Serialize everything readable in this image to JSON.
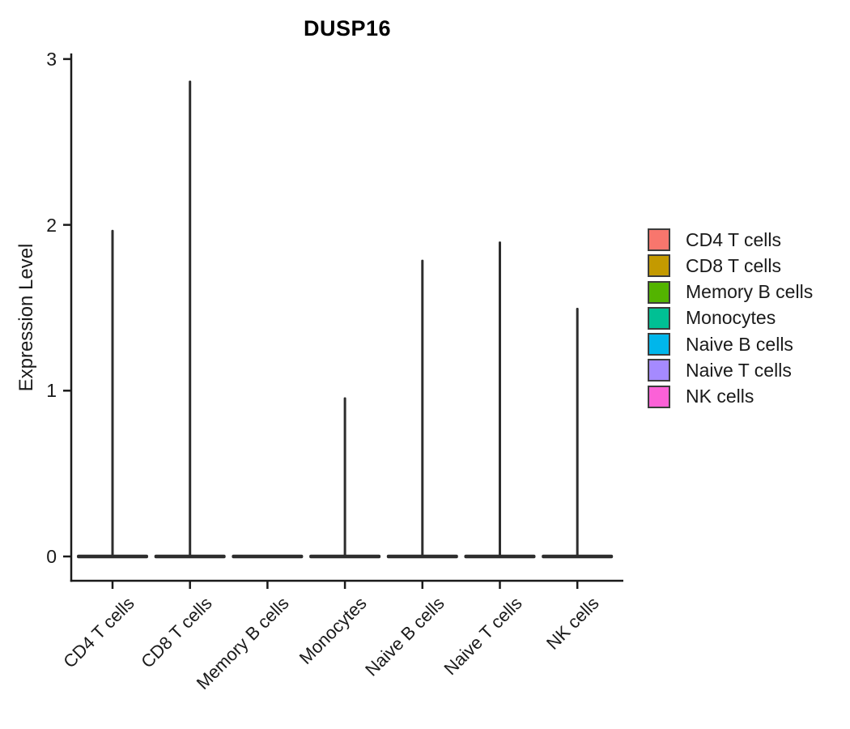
{
  "title": "DUSP16",
  "chart_data": {
    "type": "violin",
    "title": "DUSP16",
    "ylabel": "Expression Level",
    "ylim": [
      0,
      3
    ],
    "yticks": [
      0,
      1,
      2,
      3
    ],
    "grid": false,
    "legend_position": "right",
    "categories": [
      "CD4 T cells",
      "CD8 T cells",
      "Memory B cells",
      "Monocytes",
      "Naive B cells",
      "Naive T cells",
      "NK cells"
    ],
    "max_expression": [
      1.97,
      2.87,
      0,
      0.96,
      1.79,
      1.9,
      1.5
    ],
    "distribution_note": "density mass concentrated at 0 for every group; violins render as a flat bar at 0 with a thin spike up to the group maximum",
    "violin_color": "#2d2d2d",
    "axis_color": "#1a1a1a",
    "group_colors": [
      "#F8766D",
      "#C49A00",
      "#53B400",
      "#00C094",
      "#00B6EB",
      "#A58AFF",
      "#FB61D7"
    ]
  },
  "legend": {
    "items": [
      {
        "label": "CD4 T cells",
        "color": "#F8766D"
      },
      {
        "label": "CD8 T cells",
        "color": "#C49A00"
      },
      {
        "label": "Memory B cells",
        "color": "#53B400"
      },
      {
        "label": "Monocytes",
        "color": "#00C094"
      },
      {
        "label": "Naive B cells",
        "color": "#00B6EB"
      },
      {
        "label": "Naive T cells",
        "color": "#A58AFF"
      },
      {
        "label": "NK cells",
        "color": "#FB61D7"
      }
    ]
  }
}
